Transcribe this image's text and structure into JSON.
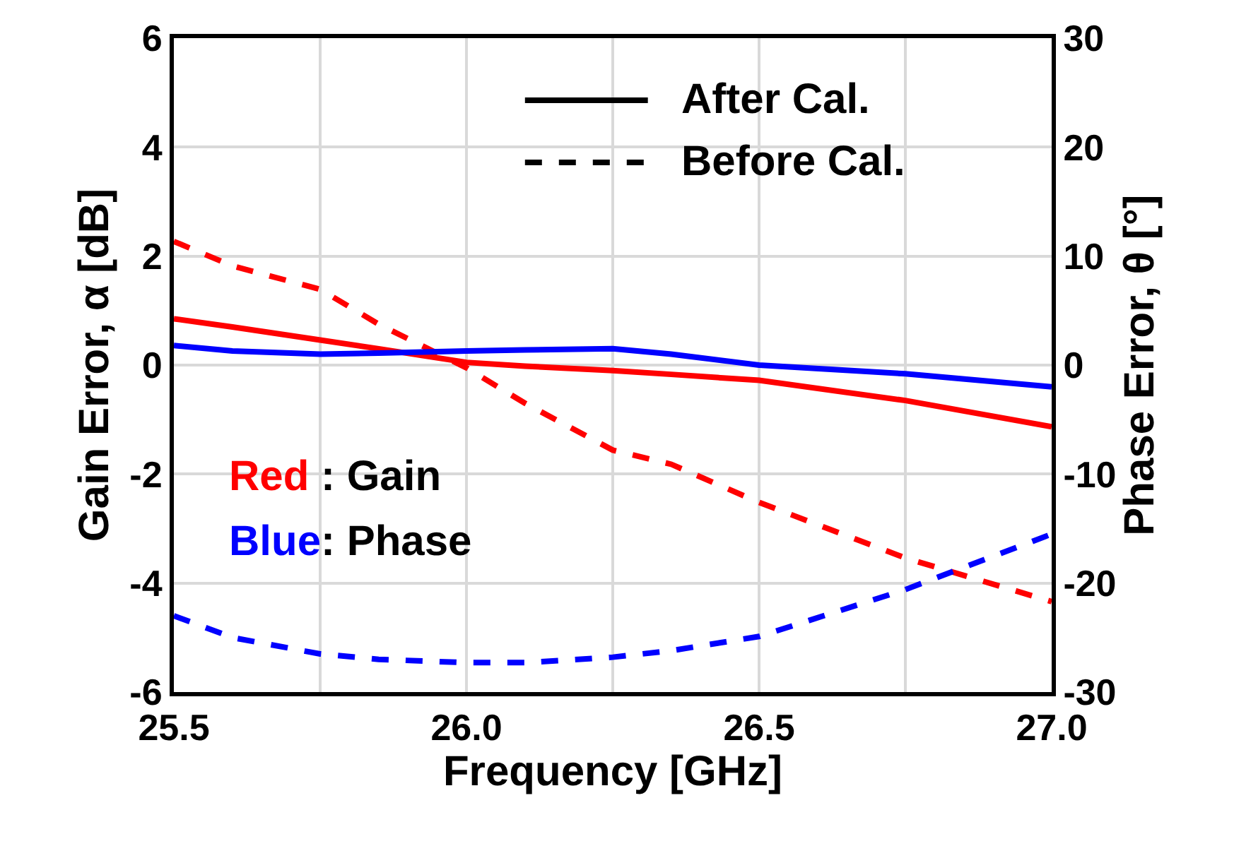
{
  "chart_data": {
    "type": "line",
    "xlabel": "Frequency [GHz]",
    "ylabel": "Gain Error, α [dB]",
    "y2label": "Phase Error, θ [°]",
    "x": [
      25.5,
      25.6,
      25.75,
      25.85,
      26.0,
      26.1,
      26.25,
      26.35,
      26.5,
      26.75,
      27.0
    ],
    "series": [
      {
        "color": "#ff0000",
        "line_style": "solid",
        "values": [
          0.85,
          0.7,
          0.46,
          0.3,
          0.05,
          -0.02,
          -0.1,
          -0.17,
          -0.28,
          -0.65,
          -1.13
        ]
      },
      {
        "color": "#ff0000",
        "line_style": "dashed",
        "values": [
          2.27,
          1.82,
          1.39,
          0.75,
          -0.05,
          -0.7,
          -1.56,
          -1.82,
          -2.52,
          -3.54,
          -4.34
        ]
      },
      {
        "color": "#0000ff",
        "line_style": "solid",
        "axis": "y2",
        "values": [
          1.8,
          1.3,
          1.0,
          1.1,
          1.3,
          1.4,
          1.5,
          1.0,
          0.0,
          -0.8,
          -2.0
        ]
      },
      {
        "color": "#0000ff",
        "line_style": "dashed",
        "axis": "y2",
        "values": [
          -23,
          -25,
          -26.5,
          -27,
          -27.3,
          -27.3,
          -26.8,
          -26.2,
          -24.9,
          -20.6,
          -15.5
        ]
      }
    ],
    "xlim": [
      25.5,
      27.0
    ],
    "xticks": [
      25.5,
      {
        "value": 25.75,
        "label": null
      },
      {
        "value": 26.0,
        "label": "26.0"
      },
      {
        "value": 26.25,
        "label": null
      },
      26.5,
      {
        "value": 26.75,
        "label": null
      },
      {
        "value": 27.0,
        "label": "27.0"
      }
    ],
    "ylim": [
      -6,
      6
    ],
    "yticks": [
      -6,
      -4,
      -2,
      0,
      2,
      4,
      6
    ],
    "y2lim": [
      -30,
      30
    ],
    "y2ticks": [
      -30,
      -20,
      -10,
      0,
      10,
      20,
      30
    ],
    "grid": true,
    "annotations": [
      "After Cal.",
      "Before Cal.",
      "Red : Gain",
      "Blue: Phase"
    ]
  }
}
